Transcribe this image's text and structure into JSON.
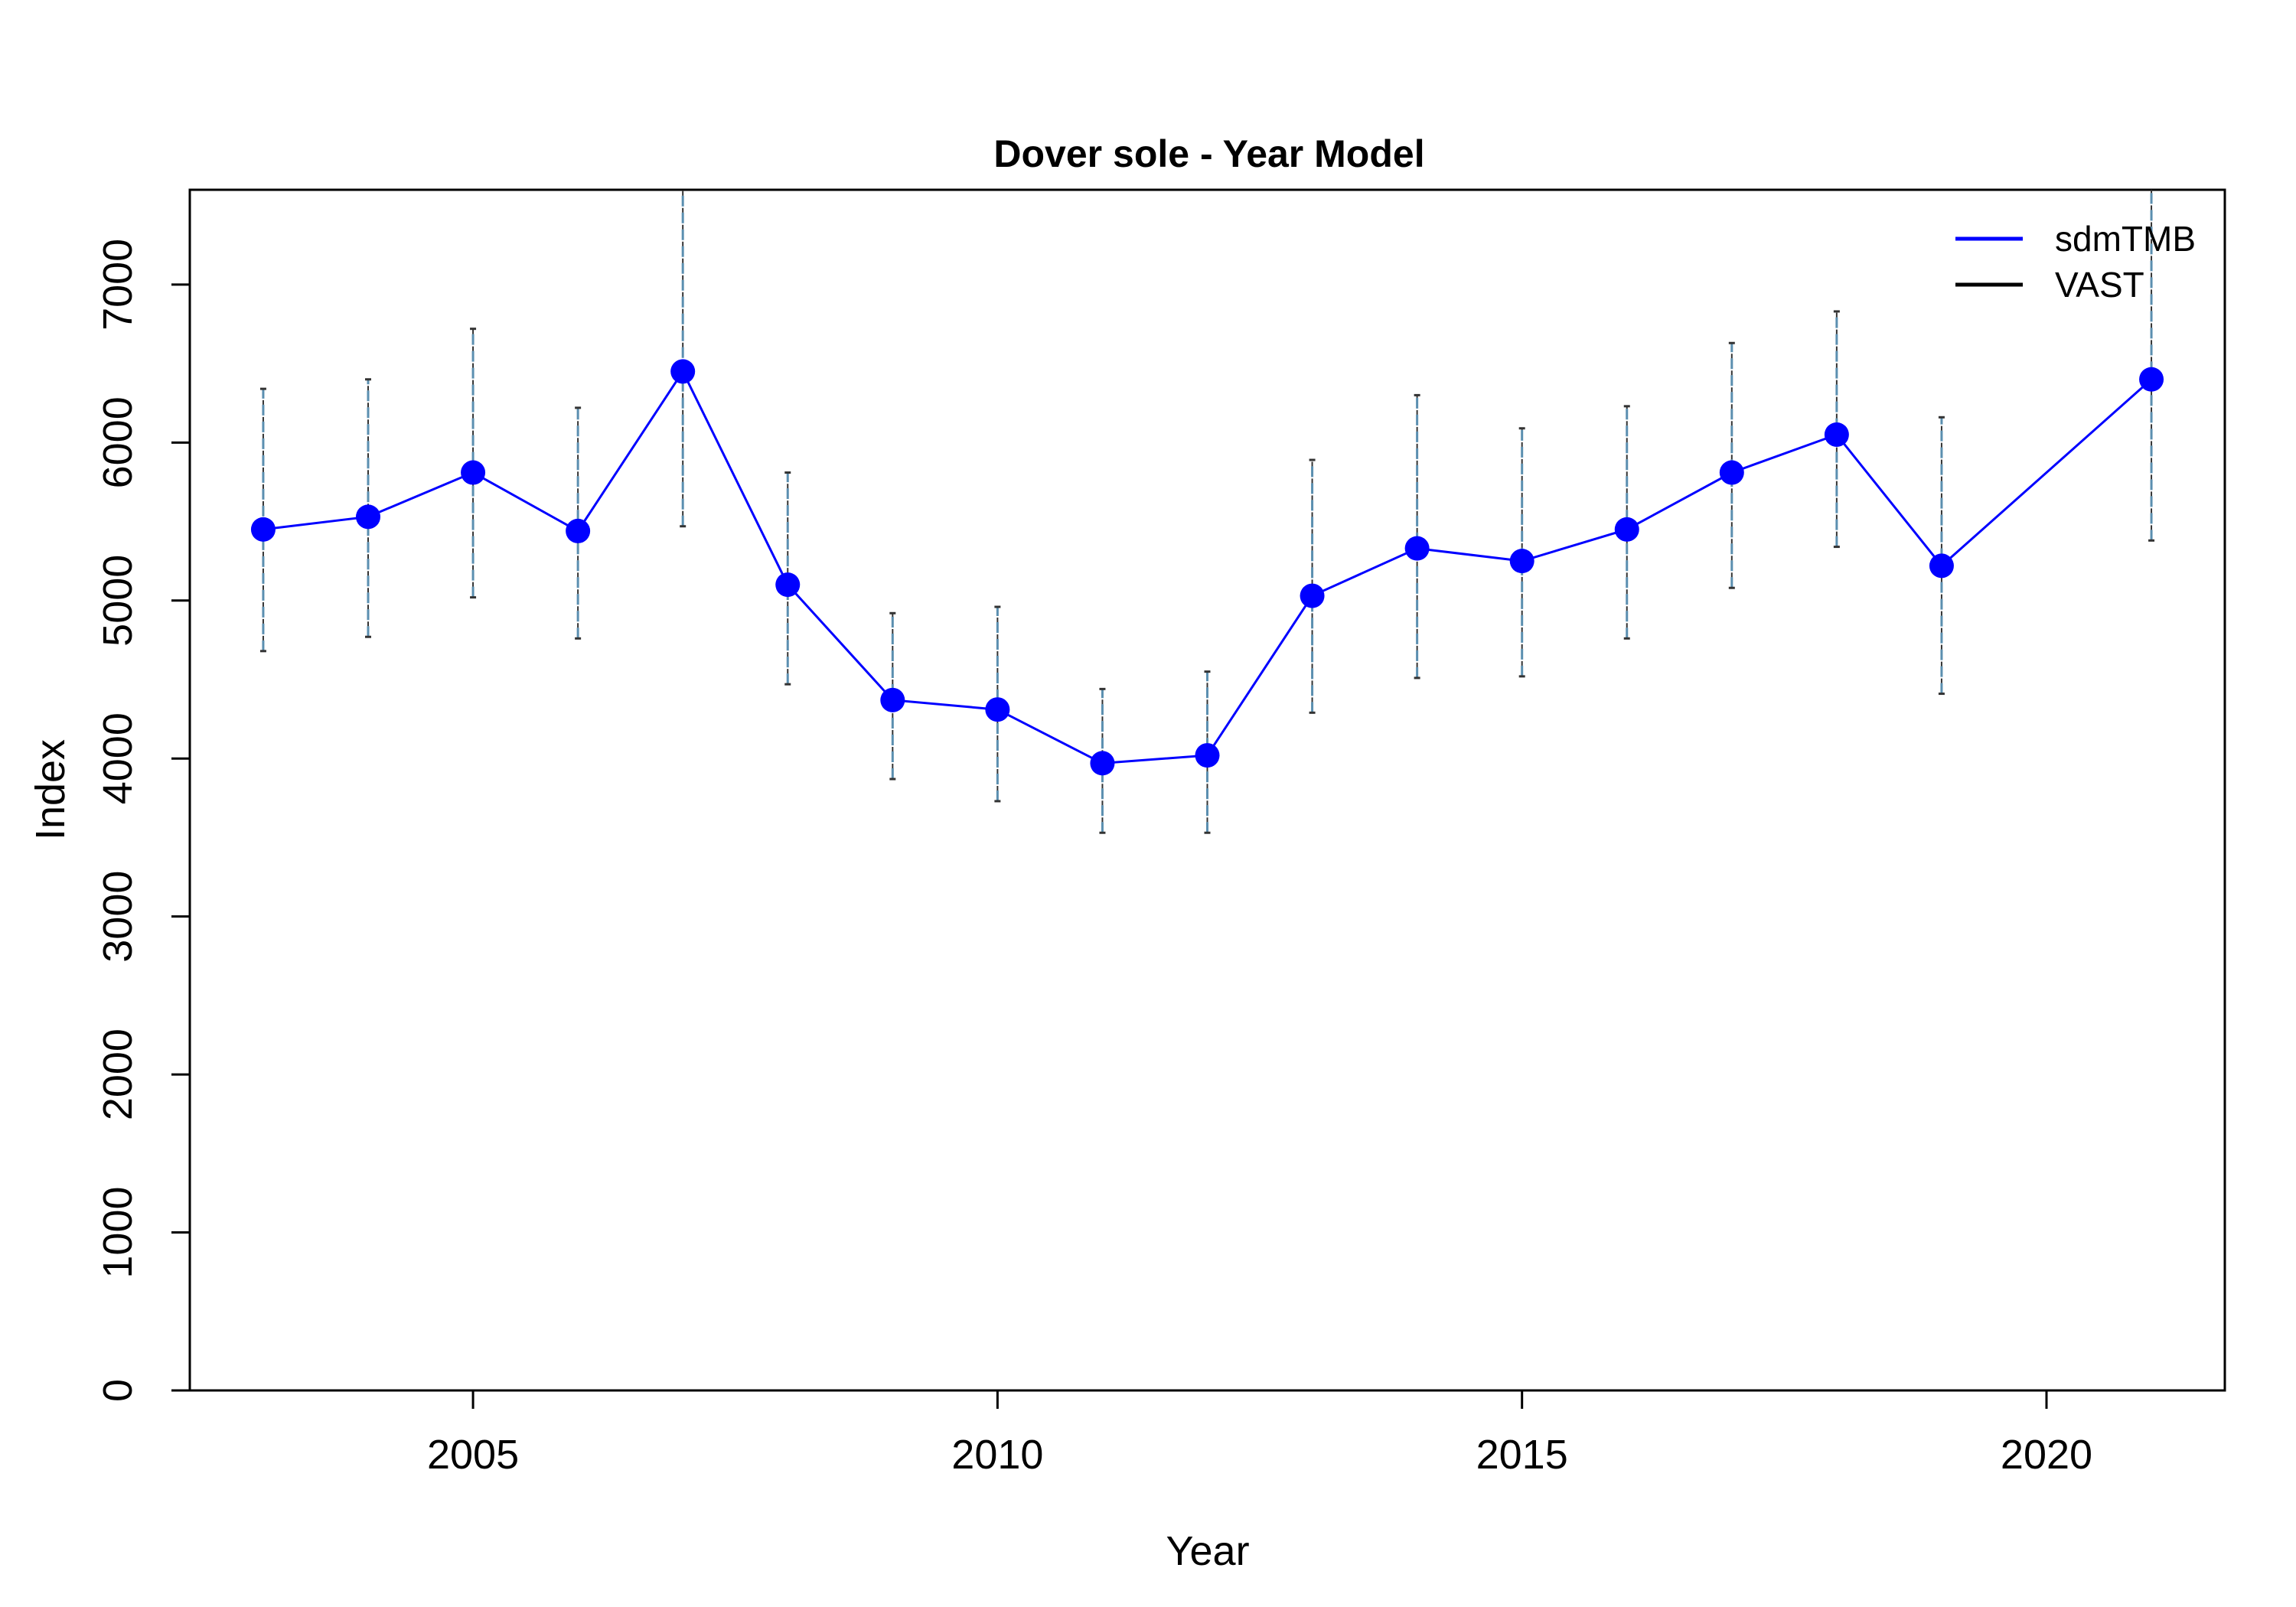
{
  "chart_data": {
    "type": "line",
    "title": "Dover sole - Year Model",
    "xlabel": "Year",
    "ylabel": "Index",
    "xlim": [
      2002.3,
      2021.7
    ],
    "ylim": [
      0,
      7600
    ],
    "x_ticks": [
      2005,
      2010,
      2015,
      2020
    ],
    "y_ticks": [
      0,
      1000,
      2000,
      3000,
      4000,
      5000,
      6000,
      7000
    ],
    "legend": {
      "position": "top-right",
      "entries": [
        {
          "name": "sdmTMB",
          "color": "#0000ff"
        },
        {
          "name": "VAST",
          "color": "#000000"
        }
      ]
    },
    "series": [
      {
        "name": "sdmTMB",
        "color": "#0000ff",
        "x": [
          2003,
          2004,
          2005,
          2006,
          2007,
          2008,
          2009,
          2010,
          2011,
          2012,
          2013,
          2014,
          2015,
          2016,
          2017,
          2018,
          2019,
          2021
        ],
        "y": [
          5450,
          5530,
          5810,
          5440,
          6450,
          5100,
          4370,
          4310,
          3970,
          4020,
          5030,
          5330,
          5250,
          5450,
          5810,
          6050,
          5220,
          6400
        ],
        "lower": [
          4680,
          4770,
          5020,
          4760,
          5470,
          4470,
          3870,
          3730,
          3530,
          3530,
          4290,
          4510,
          4520,
          4760,
          5080,
          5340,
          4410,
          5380
        ],
        "upper": [
          6340,
          6400,
          6720,
          6220,
          7600,
          5810,
          4920,
          4960,
          4440,
          4550,
          5890,
          6300,
          6090,
          6230,
          6630,
          6830,
          6160,
          7600
        ]
      },
      {
        "name": "VAST",
        "color": "#000000",
        "x": [
          2003,
          2004,
          2005,
          2006,
          2007,
          2008,
          2009,
          2010,
          2011,
          2012,
          2013,
          2014,
          2015,
          2016,
          2017,
          2018,
          2019,
          2021
        ],
        "y": [
          5450,
          5530,
          5810,
          5440,
          6450,
          5100,
          4370,
          4310,
          3970,
          4020,
          5030,
          5330,
          5250,
          5450,
          5810,
          6050,
          5220,
          6400
        ],
        "lower": [
          4680,
          4770,
          5020,
          4760,
          5470,
          4470,
          3870,
          3730,
          3530,
          3530,
          4290,
          4510,
          4520,
          4760,
          5080,
          5340,
          4410,
          5380
        ],
        "upper": [
          6340,
          6400,
          6720,
          6220,
          7600,
          5810,
          4920,
          4960,
          4440,
          4550,
          5890,
          6300,
          6090,
          6230,
          6630,
          6830,
          6160,
          7600
        ]
      }
    ]
  }
}
